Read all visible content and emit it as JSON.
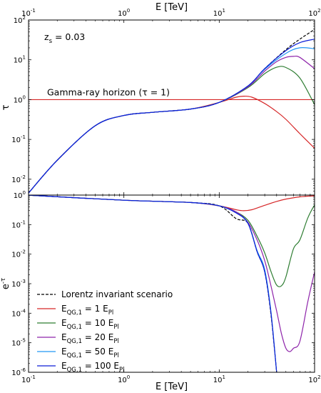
{
  "chart_data": [
    {
      "panel": "top",
      "type": "line",
      "xscale": "log",
      "yscale": "log",
      "xlabel": "E [TeV]",
      "x_tick_labels": [
        "10^-1",
        "10^0",
        "10^1",
        "10^2"
      ],
      "ylabel": "τ",
      "y_tick_labels": [
        "10^-2",
        "10^-1",
        "10^0",
        "10^1",
        "10^2"
      ],
      "xlim": [
        0.1,
        100
      ],
      "ylim": [
        0.004,
        100
      ],
      "annotation_redshift": "z_s = 0.03",
      "horizon_label": "Gamma-ray horizon (τ = 1)",
      "horizon_value": 1,
      "horizon_color": "#d62728",
      "series": [
        {
          "name": "Lorentz invariant scenario",
          "color": "#000000",
          "dash": "4,2",
          "x": [
            0.1,
            0.2,
            0.5,
            1,
            2,
            5,
            10,
            20,
            30,
            50,
            70,
            100
          ],
          "y": [
            0.0045,
            0.03,
            0.22,
            0.4,
            0.48,
            0.58,
            0.85,
            2.2,
            6.0,
            18,
            33,
            58
          ]
        },
        {
          "name": "E_{QG,1} = 1 E_Pl",
          "color": "#d62728",
          "x": [
            0.1,
            0.2,
            0.5,
            1,
            2,
            5,
            10,
            15,
            18,
            22,
            30,
            40,
            50,
            70,
            100
          ],
          "y": [
            0.0045,
            0.03,
            0.22,
            0.4,
            0.48,
            0.58,
            0.85,
            1.15,
            1.22,
            1.15,
            0.8,
            0.5,
            0.32,
            0.14,
            0.06
          ]
        },
        {
          "name": "E_{QG,1} = 10 E_Pl",
          "color": "#2e7d32",
          "x": [
            0.1,
            0.2,
            0.5,
            1,
            2,
            5,
            10,
            20,
            30,
            40,
            50,
            70,
            100
          ],
          "y": [
            0.0045,
            0.03,
            0.22,
            0.4,
            0.48,
            0.58,
            0.85,
            2.0,
            4.5,
            6.5,
            6.4,
            3.5,
            0.75
          ]
        },
        {
          "name": "E_{QG,1} = 20 E_Pl",
          "color": "#8e24aa",
          "x": [
            0.1,
            0.2,
            0.5,
            1,
            2,
            5,
            10,
            20,
            30,
            40,
            50,
            60,
            70,
            100
          ],
          "y": [
            0.0045,
            0.03,
            0.22,
            0.4,
            0.48,
            0.58,
            0.85,
            2.1,
            5.2,
            9.0,
            11.5,
            12.2,
            11.5,
            6.0
          ]
        },
        {
          "name": "E_{QG,1} = 50 E_Pl",
          "color": "#2196f3",
          "x": [
            0.1,
            0.2,
            0.5,
            1,
            2,
            5,
            10,
            20,
            30,
            50,
            70,
            100
          ],
          "y": [
            0.0045,
            0.03,
            0.22,
            0.4,
            0.48,
            0.58,
            0.85,
            2.2,
            5.8,
            14.5,
            20,
            19
          ]
        },
        {
          "name": "E_{QG,1} = 100 E_Pl",
          "color": "#0d1fd8",
          "x": [
            0.1,
            0.2,
            0.5,
            1,
            2,
            5,
            10,
            20,
            30,
            50,
            70,
            100
          ],
          "y": [
            0.0045,
            0.03,
            0.22,
            0.4,
            0.48,
            0.58,
            0.85,
            2.2,
            6.0,
            17,
            27,
            33
          ]
        }
      ]
    },
    {
      "panel": "bottom",
      "type": "line",
      "xscale": "log",
      "yscale": "log",
      "xlabel": "E [TeV]",
      "x_tick_labels": [
        "10^-1",
        "10^0",
        "10^1",
        "10^2"
      ],
      "ylabel": "e^{-τ}",
      "y_tick_labels": [
        "10^-6",
        "10^-5",
        "10^-4",
        "10^-3",
        "10^-2",
        "10^-1",
        "10^0"
      ],
      "xlim": [
        0.1,
        100
      ],
      "ylim": [
        1e-06,
        1
      ],
      "legend_placement": "lower-left",
      "series": [
        {
          "name": "Lorentz invariant scenario",
          "color": "#000000",
          "dash": "4,2",
          "x": [
            0.1,
            1,
            5,
            10,
            15,
            20,
            25,
            30,
            35,
            40
          ],
          "y": [
            0.9955,
            0.67,
            0.56,
            0.43,
            0.16,
            0.11,
            0.012,
            0.0025,
            8e-05,
            1e-06
          ]
        },
        {
          "name": "E_{QG,1} = 1 E_Pl",
          "color": "#d62728",
          "x": [
            0.1,
            1,
            5,
            10,
            15,
            18,
            22,
            30,
            40,
            50,
            70,
            100
          ],
          "y": [
            0.9955,
            0.67,
            0.56,
            0.43,
            0.32,
            0.295,
            0.32,
            0.45,
            0.61,
            0.73,
            0.87,
            0.94
          ]
        },
        {
          "name": "E_{QG,1} = 10 E_Pl",
          "color": "#2e7d32",
          "x": [
            0.1,
            1,
            5,
            10,
            15,
            20,
            25,
            30,
            35,
            40,
            45,
            50,
            60,
            70,
            85,
            100
          ],
          "y": [
            0.9955,
            0.67,
            0.56,
            0.43,
            0.27,
            0.14,
            0.04,
            0.011,
            0.0025,
            0.0009,
            0.00085,
            0.0017,
            0.015,
            0.03,
            0.17,
            0.47
          ]
        },
        {
          "name": "E_{QG,1} = 20 E_Pl",
          "color": "#8e24aa",
          "x": [
            0.1,
            1,
            5,
            10,
            15,
            20,
            25,
            30,
            35,
            40,
            45,
            50,
            55,
            60,
            70,
            85,
            100
          ],
          "y": [
            0.9955,
            0.67,
            0.56,
            0.43,
            0.27,
            0.12,
            0.03,
            0.006,
            0.0008,
            0.00012,
            2e-05,
            6.5e-06,
            5e-06,
            6.5e-06,
            1.1e-05,
            0.00025,
            0.0025
          ]
        },
        {
          "name": "E_{QG,1} = 50 E_Pl",
          "color": "#2196f3",
          "x": [
            0.1,
            1,
            5,
            10,
            15,
            20,
            25,
            30,
            35,
            40
          ],
          "y": [
            0.9955,
            0.67,
            0.56,
            0.43,
            0.25,
            0.11,
            0.013,
            0.003,
            0.0001,
            1e-06
          ]
        },
        {
          "name": "E_{QG,1} = 100 E_Pl",
          "color": "#0d1fd8",
          "x": [
            0.1,
            1,
            5,
            10,
            15,
            20,
            25,
            30,
            35,
            40
          ],
          "y": [
            0.9955,
            0.67,
            0.56,
            0.43,
            0.25,
            0.11,
            0.012,
            0.0025,
            9e-05,
            1e-06
          ]
        }
      ]
    }
  ]
}
